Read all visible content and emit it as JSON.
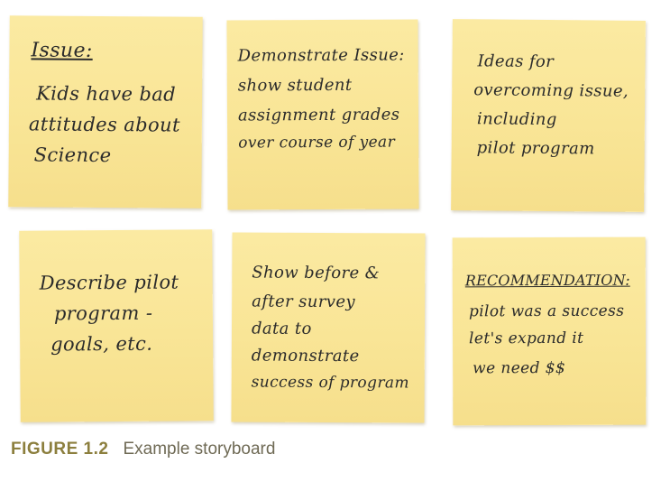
{
  "notes": [
    {
      "lines": [
        "Issue:",
        "Kids have bad",
        "attitudes about",
        "Science"
      ]
    },
    {
      "lines": [
        "Demonstrate Issue:",
        "show student",
        "assignment grades",
        "over course of year"
      ]
    },
    {
      "lines": [
        "Ideas for",
        "overcoming issue,",
        "including",
        "pilot program"
      ]
    },
    {
      "lines": [
        "Describe pilot",
        "program -",
        "goals, etc."
      ]
    },
    {
      "lines": [
        "Show before &",
        "after survey",
        "data to",
        "demonstrate",
        "success of program"
      ]
    },
    {
      "lines": [
        "RECOMMENDATION:",
        "pilot was a success",
        "let's expand it",
        "we need $$"
      ]
    }
  ],
  "caption": {
    "label": "FIGURE 1.2",
    "text": "Example storyboard"
  }
}
